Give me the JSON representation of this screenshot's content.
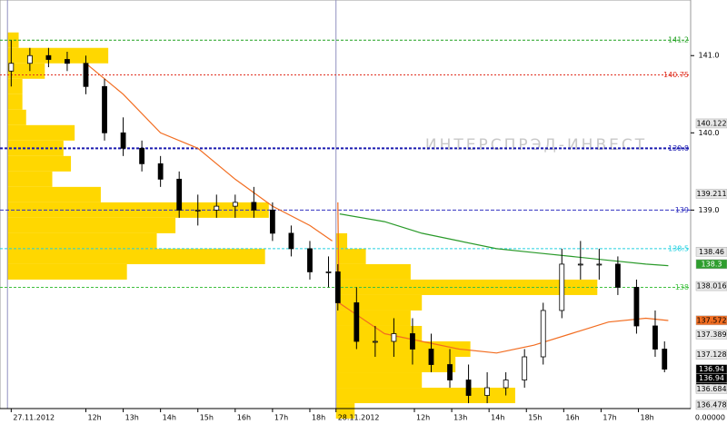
{
  "chart_data": {
    "type": "candlestick",
    "watermark": "ИНТЕРСПРЭД-ИНВЕСТ",
    "footer_label": "0.00000",
    "ylim": [
      136.43,
      141.72
    ],
    "yticks": [
      {
        "value": 141,
        "label": "141.0"
      },
      {
        "value": 140,
        "label": "140.0"
      },
      {
        "value": 139,
        "label": "139.0"
      }
    ],
    "xlim": [
      -0.3,
      18.2
    ],
    "xticks": [
      {
        "value": 0,
        "label": "27.11.2012"
      },
      {
        "value": 2,
        "label": "12h"
      },
      {
        "value": 3,
        "label": "13h"
      },
      {
        "value": 4,
        "label": "14h"
      },
      {
        "value": 5,
        "label": "15h"
      },
      {
        "value": 6,
        "label": "16h"
      },
      {
        "value": 7,
        "label": "17h"
      },
      {
        "value": 8,
        "label": "18h"
      },
      {
        "value": 8.7,
        "label": "28.11.2012"
      },
      {
        "value": 10.8,
        "label": "12h"
      },
      {
        "value": 11.8,
        "label": "13h"
      },
      {
        "value": 12.8,
        "label": "14h"
      },
      {
        "value": 13.8,
        "label": "15h"
      },
      {
        "value": 14.8,
        "label": "16h"
      },
      {
        "value": 15.8,
        "label": "17h"
      },
      {
        "value": 16.8,
        "label": "18h"
      }
    ],
    "separators": [
      -0.1,
      8.7
    ],
    "up_color": "#ffffff",
    "down_color": "#000000",
    "x": [
      0,
      0.5,
      1,
      1.5,
      2,
      2.5,
      3,
      3.5,
      4,
      4.5,
      5,
      5.5,
      6,
      6.5,
      7,
      7.5,
      8,
      8.5,
      8.75,
      9.25,
      9.75,
      10.25,
      10.75,
      11.25,
      11.75,
      12.25,
      12.75,
      13.25,
      13.75,
      14.25,
      14.75,
      15.25,
      15.75,
      16.25,
      16.75,
      17.25,
      17.5
    ],
    "open": [
      140.8,
      140.9,
      141.0,
      140.95,
      140.9,
      140.6,
      140.0,
      139.8,
      139.6,
      139.4,
      139.0,
      139.0,
      139.05,
      139.1,
      139.0,
      138.7,
      138.5,
      138.2,
      138.2,
      137.8,
      137.3,
      137.3,
      137.4,
      137.2,
      137.0,
      136.8,
      136.6,
      136.7,
      136.8,
      137.1,
      137.7,
      138.3,
      138.3,
      138.3,
      138.0,
      137.5,
      137.2
    ],
    "high": [
      141.2,
      141.1,
      141.1,
      141.05,
      141.0,
      140.7,
      140.2,
      139.9,
      139.7,
      139.5,
      139.2,
      139.2,
      139.2,
      139.3,
      139.1,
      138.8,
      138.6,
      138.4,
      138.3,
      138.0,
      137.5,
      137.6,
      137.6,
      137.4,
      137.2,
      137.0,
      136.9,
      136.9,
      137.2,
      137.8,
      138.5,
      138.6,
      138.5,
      138.4,
      138.1,
      137.7,
      137.3
    ],
    "low": [
      140.6,
      140.8,
      140.85,
      140.8,
      140.5,
      139.9,
      139.7,
      139.5,
      139.3,
      138.9,
      138.8,
      138.9,
      138.9,
      138.9,
      138.6,
      138.4,
      138.1,
      138.0,
      137.7,
      137.2,
      137.1,
      137.1,
      137.0,
      136.9,
      136.7,
      136.5,
      136.5,
      136.6,
      136.7,
      137.0,
      137.6,
      138.1,
      138.1,
      137.9,
      137.4,
      137.1,
      136.9
    ],
    "close": [
      140.9,
      141.0,
      140.95,
      140.9,
      140.6,
      140.0,
      139.8,
      139.6,
      139.4,
      139.0,
      139.0,
      139.05,
      139.1,
      139.0,
      138.7,
      138.5,
      138.2,
      138.2,
      137.8,
      137.3,
      137.3,
      137.4,
      137.2,
      137.0,
      136.8,
      136.6,
      136.7,
      136.8,
      137.1,
      137.7,
      138.3,
      138.3,
      138.3,
      138.0,
      137.5,
      137.2,
      136.94
    ],
    "lines": [
      {
        "color": "#f26d21",
        "x": [
          2,
          3,
          4,
          5,
          6,
          7,
          8,
          8.6,
          8.65,
          8.75,
          8.78,
          10,
          11,
          12,
          13,
          14,
          15,
          16,
          17,
          17.6
        ],
        "values": [
          140.9,
          140.5,
          140.0,
          139.8,
          139.4,
          139.05,
          138.8,
          138.6,
          null,
          139.1,
          137.8,
          137.4,
          137.3,
          137.2,
          137.15,
          137.25,
          137.4,
          137.55,
          137.6,
          137.57
        ]
      },
      {
        "color": "#2a9a2a",
        "x": [
          8.8,
          10,
          11,
          12,
          13,
          14,
          15,
          16,
          17,
          17.6
        ],
        "values": [
          138.95,
          138.85,
          138.7,
          138.6,
          138.5,
          138.45,
          138.4,
          138.35,
          138.3,
          138.28
        ]
      }
    ],
    "profile_color": "#ffd700",
    "profiles": [
      {
        "start": -0.1,
        "levels": [
          141.2,
          141.0,
          140.8,
          140.6,
          140.4,
          140.2,
          140.0,
          139.8,
          139.6,
          139.4,
          139.2,
          139.0,
          138.8,
          138.6,
          138.4,
          138.2
        ],
        "widths": [
          0.3,
          2.7,
          1.0,
          0.4,
          0.4,
          0.5,
          1.8,
          1.5,
          1.7,
          1.2,
          2.5,
          7.0,
          4.5,
          4.0,
          6.9,
          3.2
        ]
      },
      {
        "start": 8.7,
        "levels": [
          138.6,
          138.4,
          138.2,
          138.0,
          137.8,
          137.6,
          137.4,
          137.2,
          137.0,
          136.8,
          136.6,
          136.4
        ],
        "widths": [
          0.3,
          0.8,
          2.0,
          7.0,
          2.3,
          2.0,
          2.3,
          3.6,
          3.2,
          2.3,
          4.8,
          0.5
        ]
      }
    ],
    "levels": [
      {
        "value": 141.2,
        "color": "#1fa01f",
        "dash": "3,2"
      },
      {
        "value": 140.75,
        "color": "#e03020",
        "dash": "2,2"
      },
      {
        "value": 139.8,
        "color": "#1a1ab0",
        "dash": "3,2"
      },
      {
        "value": 139,
        "color": "#3030c0",
        "dash": "4,2"
      },
      {
        "value": 138.5,
        "color": "#20d0e0",
        "dash": "3,2"
      },
      {
        "value": 138,
        "color": "#40c040",
        "dash": "3,2"
      }
    ],
    "markers": [
      {
        "value": 140.122,
        "bg": "#e6e6e6",
        "fg": "#000000"
      },
      {
        "value": 139.211,
        "bg": "#e6e6e6",
        "fg": "#000000"
      },
      {
        "value": 138.46,
        "bg": "#e6e6e6",
        "fg": "#000000"
      },
      {
        "value": 138.3,
        "bg": "#2e9e2e",
        "fg": "#ffffff"
      },
      {
        "value": 138.016,
        "bg": "#e6e6e6",
        "fg": "#000000"
      },
      {
        "value": 137.572,
        "bg": "#f26d21",
        "fg": "#000000"
      },
      {
        "value": 137.389,
        "bg": "#e6e6e6",
        "fg": "#000000"
      },
      {
        "value": 137.128,
        "bg": "#e6e6e6",
        "fg": "#000000"
      },
      {
        "value": 136.94,
        "bg": "#000000",
        "fg": "#ffffff"
      },
      {
        "value": 136.94,
        "bg": "#000000",
        "fg": "#ffffff"
      },
      {
        "value": 136.94,
        "bg": "#000000",
        "fg": "#ffffff"
      },
      {
        "value": 136.684,
        "bg": "#e6e6e6",
        "fg": "#000000"
      },
      {
        "value": 136.478,
        "bg": "#e6e6e6",
        "fg": "#000000"
      }
    ]
  }
}
